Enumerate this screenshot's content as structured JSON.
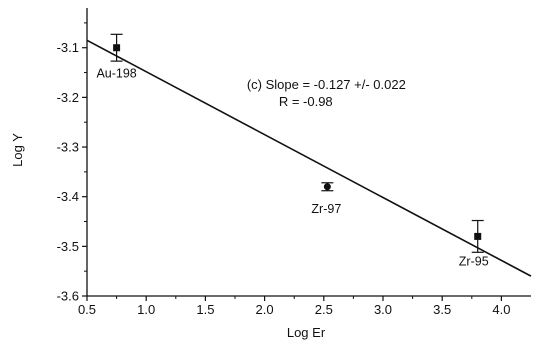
{
  "chart_data": {
    "type": "scatter",
    "xlabel": "Log Er",
    "ylabel": "Log Y",
    "xlim": [
      0.5,
      4.25
    ],
    "ylim": [
      -3.6,
      -3.02
    ],
    "x_ticks": [
      "0.5",
      "1.0",
      "1.5",
      "2.0",
      "2.5",
      "3.0",
      "3.5",
      "4.0"
    ],
    "y_ticks": [
      "-3.1",
      "-3.2",
      "-3.3",
      "-3.4",
      "-3.5",
      "-3.6"
    ],
    "grid": false,
    "points": [
      {
        "label": "Au-198",
        "x": 0.75,
        "y": -3.1,
        "err": 0.027,
        "marker": "square"
      },
      {
        "label": "Zr-97",
        "x": 2.53,
        "y": -3.38,
        "err": 0.008,
        "marker": "circle"
      },
      {
        "label": "Zr-95",
        "x": 3.8,
        "y": -3.48,
        "err": 0.032,
        "marker": "square"
      }
    ],
    "fit_line": {
      "x": [
        0.5,
        4.25
      ],
      "y": [
        -3.085,
        -3.56
      ]
    },
    "annotation": {
      "line1": "(c) Slope = -0.127 +/- 0.022",
      "line2": "R = -0.98",
      "x": 1.85,
      "y": -3.183
    }
  }
}
